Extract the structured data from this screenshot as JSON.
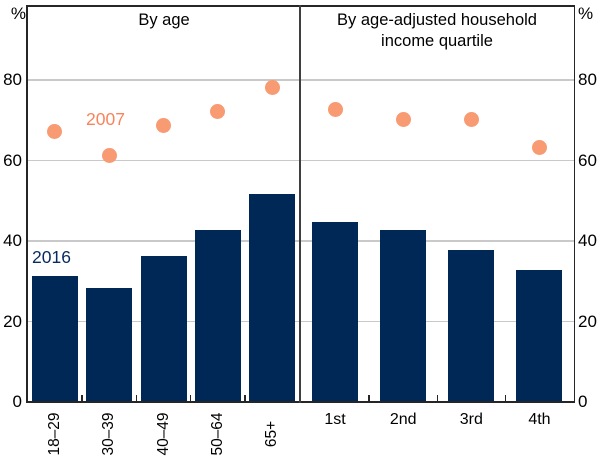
{
  "chart_data": {
    "type": "bar+scatter",
    "unit": "%",
    "ylim": [
      0,
      98.5
    ],
    "yticks": [
      0,
      20,
      40,
      60,
      80
    ],
    "grid": true,
    "legend_position": "inline-annotations",
    "series_labels": {
      "bars": "2016",
      "dots": "2007"
    },
    "colors": {
      "bar": "#002857",
      "dot": "#f89a72",
      "dot_label": "#f8845c",
      "bar_label": "#082a5e",
      "grid": "#c9c9c9",
      "axis": "#262626",
      "divider": "#3f3f3f"
    },
    "panels": [
      {
        "title": "By age",
        "categories": [
          "18–29",
          "30–39",
          "40–49",
          "50–64",
          "65+"
        ],
        "series": [
          {
            "name": "2016",
            "type": "bar",
            "values": [
              31,
              28,
              36,
              42.5,
              51.5
            ]
          },
          {
            "name": "2007",
            "type": "scatter",
            "values": [
              67,
              61,
              68.5,
              72,
              78
            ]
          }
        ],
        "xlabels_rotated": true
      },
      {
        "title": "By age-adjusted household income quartile",
        "categories": [
          "1st",
          "2nd",
          "3rd",
          "4th"
        ],
        "series": [
          {
            "name": "2016",
            "type": "bar",
            "values": [
              44.5,
              42.5,
              37.5,
              32.5
            ]
          },
          {
            "name": "2007",
            "type": "scatter",
            "values": [
              72.5,
              70,
              70,
              63
            ]
          }
        ],
        "xlabels_rotated": false
      }
    ]
  }
}
